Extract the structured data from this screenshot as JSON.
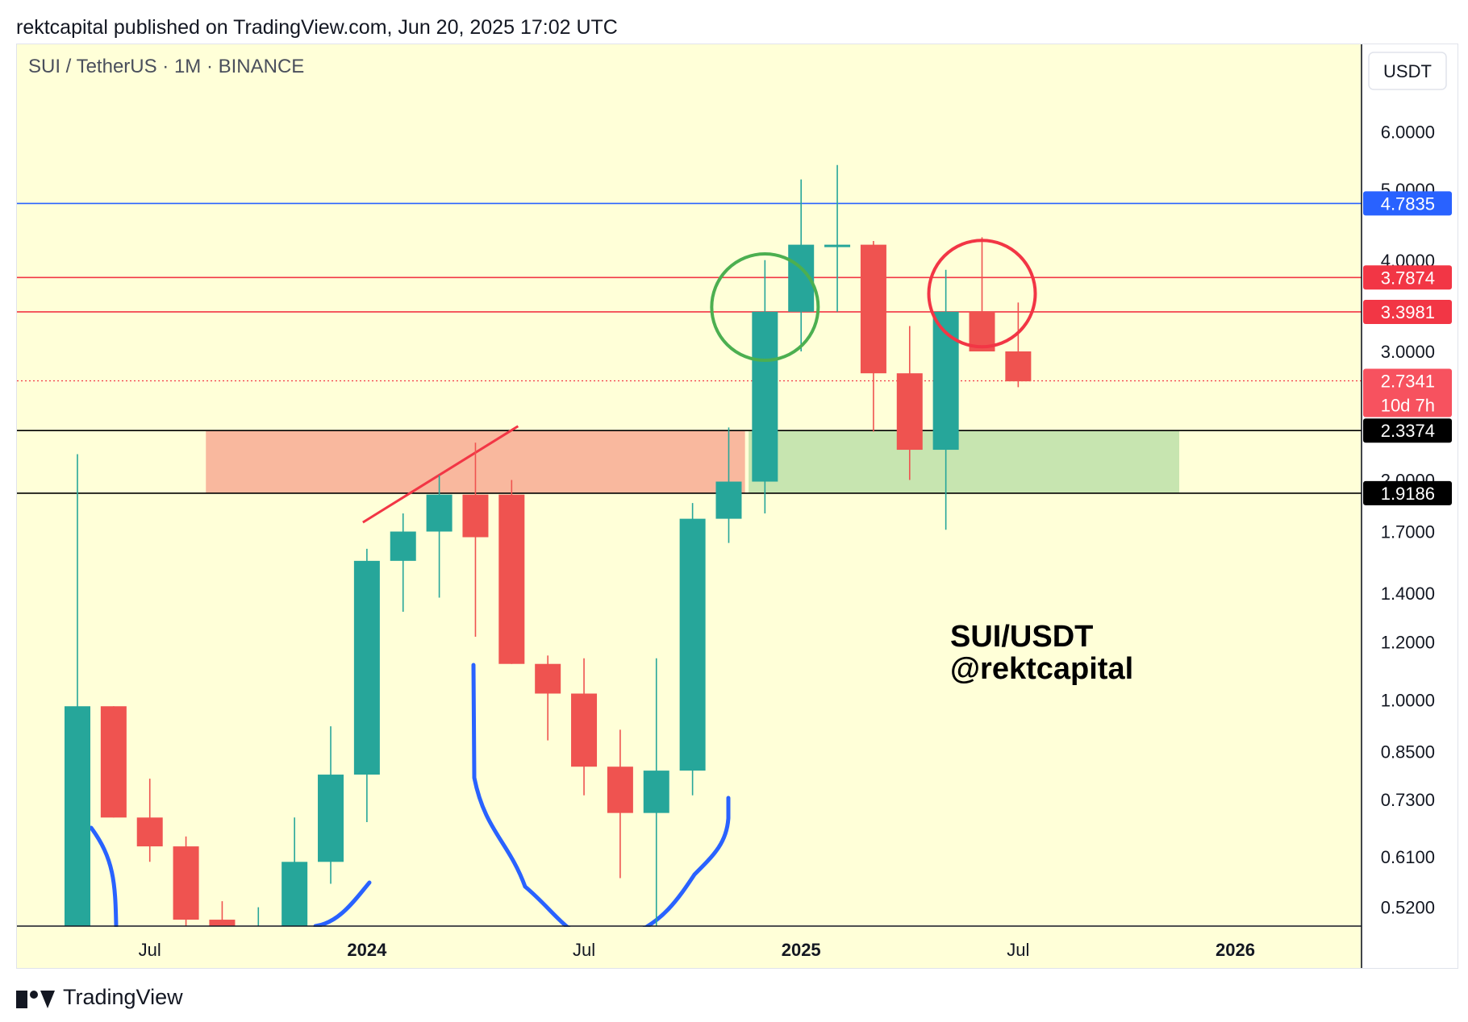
{
  "header": {
    "published": "rektcapital published on TradingView.com, Jun 20, 2025 17:02 UTC"
  },
  "footer": {
    "brand": "TradingView",
    "logo_icon": "tradingview-logo-icon"
  },
  "chart_data": {
    "type": "candlestick",
    "symbol_line": "SUI / TetherUS · 1M · BINANCE",
    "currency_button": "USDT",
    "watermark": [
      "SUI/USDT",
      "@rektcapital"
    ],
    "y_scale": "log",
    "ylim": [
      0.49,
      7.9
    ],
    "y_ticks": [
      "6.0000",
      "5.0000",
      "4.0000",
      "3.0000",
      "2.0000",
      "1.7000",
      "1.4000",
      "1.2000",
      "1.0000",
      "0.8500",
      "0.7300",
      "0.6100",
      "0.5200"
    ],
    "x_ticks": [
      {
        "label": "Jul",
        "bold": false
      },
      {
        "label": "2024",
        "bold": true
      },
      {
        "label": "Jul",
        "bold": false
      },
      {
        "label": "2025",
        "bold": true
      },
      {
        "label": "Jul",
        "bold": false
      },
      {
        "label": "2026",
        "bold": true
      }
    ],
    "candles": [
      {
        "date": "2023-05",
        "open": 0.4,
        "high": 2.17,
        "low": 0.4,
        "close": 0.98
      },
      {
        "date": "2023-06",
        "open": 0.98,
        "high": 0.98,
        "low": 0.69,
        "close": 0.69
      },
      {
        "date": "2023-07",
        "open": 0.69,
        "high": 0.78,
        "low": 0.6,
        "close": 0.63
      },
      {
        "date": "2023-08",
        "open": 0.63,
        "high": 0.65,
        "low": 0.48,
        "close": 0.5
      },
      {
        "date": "2023-09",
        "open": 0.5,
        "high": 0.53,
        "low": 0.36,
        "close": 0.42
      },
      {
        "date": "2023-10",
        "open": 0.42,
        "high": 0.52,
        "low": 0.36,
        "close": 0.47
      },
      {
        "date": "2023-11",
        "open": 0.47,
        "high": 0.69,
        "low": 0.44,
        "close": 0.6
      },
      {
        "date": "2023-12",
        "open": 0.6,
        "high": 0.92,
        "low": 0.56,
        "close": 0.79
      },
      {
        "date": "2024-01",
        "open": 0.79,
        "high": 1.61,
        "low": 0.68,
        "close": 1.55
      },
      {
        "date": "2024-02",
        "open": 1.55,
        "high": 1.8,
        "low": 1.32,
        "close": 1.7
      },
      {
        "date": "2024-03",
        "open": 1.7,
        "high": 2.03,
        "low": 1.38,
        "close": 1.91
      },
      {
        "date": "2024-04",
        "open": 1.91,
        "high": 2.25,
        "low": 1.22,
        "close": 1.67
      },
      {
        "date": "2024-05",
        "open": 1.91,
        "high": 2.0,
        "low": 1.12,
        "close": 1.12
      },
      {
        "date": "2024-06",
        "open": 1.12,
        "high": 1.15,
        "low": 0.88,
        "close": 1.02
      },
      {
        "date": "2024-07",
        "open": 1.02,
        "high": 1.14,
        "low": 0.74,
        "close": 0.81
      },
      {
        "date": "2024-08",
        "open": 0.81,
        "high": 0.91,
        "low": 0.57,
        "close": 0.7
      },
      {
        "date": "2024-09",
        "open": 0.7,
        "high": 1.14,
        "low": 0.49,
        "close": 0.8
      },
      {
        "date": "2024-10",
        "open": 0.8,
        "high": 1.86,
        "low": 0.74,
        "close": 1.77
      },
      {
        "date": "2024-11",
        "open": 1.77,
        "high": 2.36,
        "low": 1.64,
        "close": 1.99
      },
      {
        "date": "2024-12",
        "open": 1.99,
        "high": 4.0,
        "low": 1.8,
        "close": 3.4
      },
      {
        "date": "2025-01",
        "open": 3.4,
        "high": 5.16,
        "low": 3.0,
        "close": 4.2
      },
      {
        "date": "2025-02",
        "open": 4.2,
        "high": 5.4,
        "low": 3.4,
        "close": 4.2
      },
      {
        "date": "2025-03",
        "open": 4.2,
        "high": 4.25,
        "low": 2.33,
        "close": 2.8
      },
      {
        "date": "2025-04",
        "open": 2.8,
        "high": 3.25,
        "low": 2.0,
        "close": 2.2
      },
      {
        "date": "2025-05",
        "open": 2.2,
        "high": 3.88,
        "low": 1.71,
        "close": 3.4
      },
      {
        "date": "2025-06",
        "open": 3.4,
        "high": 4.3,
        "low": 3.0,
        "close": 3.0
      },
      {
        "date": "2025-07",
        "open": 3.0,
        "high": 3.5,
        "low": 2.68,
        "close": 2.73
      }
    ],
    "horizontal_lines": [
      {
        "value": 4.7835,
        "label": "4.7835",
        "color": "#2962ff",
        "label_bg": "#2962ff",
        "style": "solid"
      },
      {
        "value": 3.7874,
        "label": "3.7874",
        "color": "#f23645",
        "label_bg": "#f23645",
        "style": "solid"
      },
      {
        "value": 3.3981,
        "label": "3.3981",
        "color": "#f23645",
        "label_bg": "#f23645",
        "style": "solid"
      },
      {
        "value": 2.7341,
        "label": "2.7341",
        "sublabel": "10d 7h",
        "color": "#f23645",
        "label_bg": "#f7525f",
        "style": "dotted"
      },
      {
        "value": 2.3374,
        "label": "2.3374",
        "color": "#000000",
        "label_bg": "#000000",
        "style": "solid"
      },
      {
        "value": 1.9186,
        "label": "1.9186",
        "color": "#000000",
        "label_bg": "#000000",
        "style": "solid"
      }
    ],
    "zones": [
      {
        "from": "2023-09",
        "to": "2024-11",
        "low": 1.9186,
        "high": 2.3374,
        "color": "#f9b89e"
      },
      {
        "from": "2024-12",
        "to": "2025-11",
        "low": 1.9186,
        "high": 2.3374,
        "color": "#c7e5b0"
      }
    ],
    "trendline": {
      "from": {
        "date": "2024-01",
        "value": 1.75
      },
      "to": {
        "date": "2024-05",
        "value": 2.37
      },
      "color": "#f23645"
    },
    "circles": [
      {
        "date": "2024-12",
        "value": 3.45,
        "color": "#4caf50"
      },
      {
        "date": "2025-06",
        "value": 3.6,
        "color": "#f23645"
      }
    ],
    "colors": {
      "up": "#26a69a",
      "down": "#ef5350",
      "background": "#ffffd8",
      "curve": "#2962ff"
    }
  }
}
